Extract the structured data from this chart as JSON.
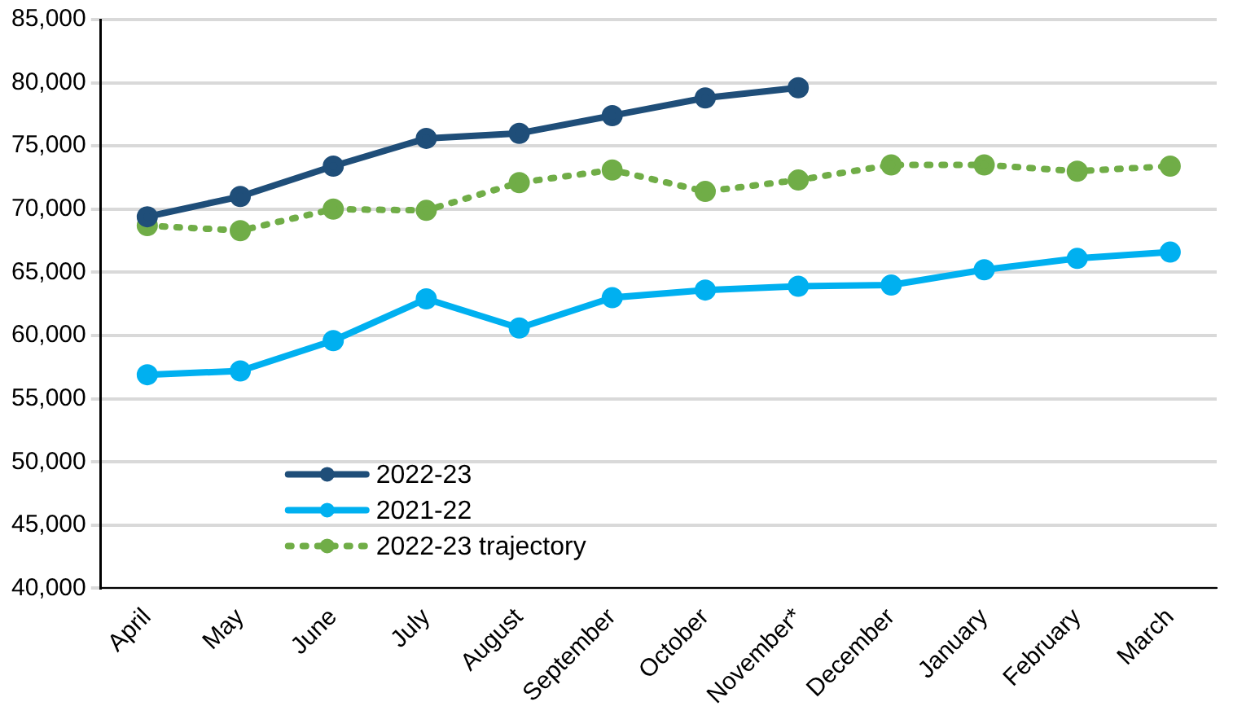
{
  "chart_data": {
    "type": "line",
    "categories": [
      "April",
      "May",
      "June",
      "July",
      "August",
      "September",
      "October",
      "November*",
      "December",
      "January",
      "February",
      "March"
    ],
    "series": [
      {
        "name": "2022-23",
        "color": "#1f4e79",
        "values": [
          69400,
          71000,
          73400,
          75600,
          76000,
          77400,
          78800,
          79600,
          null,
          null,
          null,
          null
        ]
      },
      {
        "name": "2021-22",
        "color": "#00b0f0",
        "values": [
          56900,
          57200,
          59600,
          62900,
          60600,
          63000,
          63600,
          63900,
          64000,
          65200,
          66100,
          66600
        ]
      },
      {
        "name": "2022-23 trajectory",
        "color": "#70ad47",
        "line_style": "dotted",
        "values": [
          68700,
          68300,
          70000,
          69900,
          72100,
          73100,
          71400,
          72300,
          73500,
          73500,
          73000,
          73400
        ]
      }
    ],
    "ylim": [
      40000,
      85000
    ],
    "yticks": [
      {
        "value": 40000,
        "label": "40,000"
      },
      {
        "value": 45000,
        "label": "45,000"
      },
      {
        "value": 50000,
        "label": "50,000"
      },
      {
        "value": 55000,
        "label": "55,000"
      },
      {
        "value": 60000,
        "label": "60,000"
      },
      {
        "value": 65000,
        "label": "65,000"
      },
      {
        "value": 70000,
        "label": "70,000"
      },
      {
        "value": 75000,
        "label": "75,000"
      },
      {
        "value": 80000,
        "label": "80,000"
      },
      {
        "value": 85000,
        "label": "85,000"
      }
    ],
    "grid": "y",
    "legend": "bottom left",
    "marker": "circle"
  }
}
